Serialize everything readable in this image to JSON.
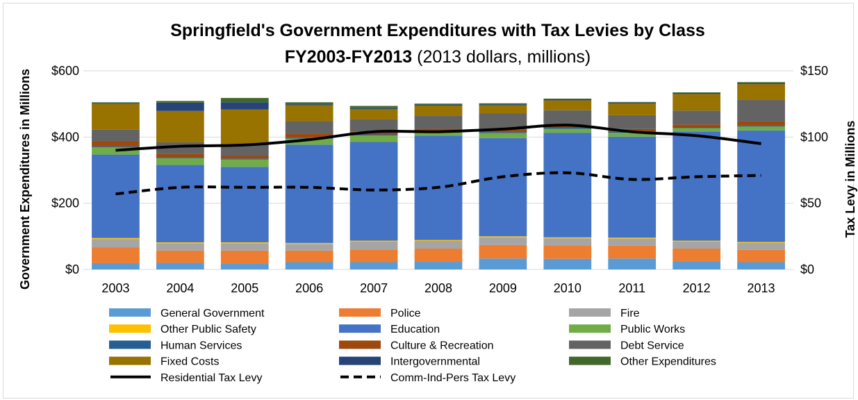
{
  "chart_data": {
    "type": "bar",
    "stacked": true,
    "title": "Springfield's Government Expenditures with Tax Levies by Class",
    "subtitle_bold": "FY2003-FY2013",
    "subtitle_normal": " (2013 dollars, millions)",
    "ylabel": "Government Expenditures in Millions",
    "y2label": "Tax Levy in Millions",
    "ylim": [
      0,
      600
    ],
    "y2lim": [
      0,
      150
    ],
    "y_ticks": [
      "$0",
      "$200",
      "$400",
      "$600"
    ],
    "y2_ticks": [
      "$0",
      "$50",
      "$100",
      "$150"
    ],
    "grid": true,
    "legend_position": "bottom",
    "categories": [
      "2003",
      "2004",
      "2005",
      "2006",
      "2007",
      "2008",
      "2009",
      "2010",
      "2011",
      "2012",
      "2013"
    ],
    "series": [
      {
        "name": "General Government",
        "color": "#5b9bd5",
        "values": [
          19,
          20,
          18,
          22,
          22,
          23,
          33,
          32,
          33,
          25,
          22
        ]
      },
      {
        "name": "Police",
        "color": "#ed7d31",
        "values": [
          48,
          37,
          39,
          35,
          38,
          40,
          41,
          41,
          39,
          38,
          37
        ]
      },
      {
        "name": "Fire",
        "color": "#a5a5a5",
        "values": [
          25,
          22,
          22,
          20,
          24,
          23,
          23,
          21,
          21,
          21,
          21
        ]
      },
      {
        "name": "Other Public Safety",
        "color": "#ffc000",
        "values": [
          3,
          3,
          3,
          3,
          3,
          3,
          3,
          3,
          3,
          3,
          3
        ]
      },
      {
        "name": "Education",
        "color": "#4472c4",
        "values": [
          252,
          234,
          228,
          297,
          298,
          315,
          297,
          316,
          305,
          330,
          337
        ]
      },
      {
        "name": "Public Works",
        "color": "#70ad47",
        "values": [
          22,
          20,
          22,
          18,
          20,
          10,
          15,
          12,
          12,
          10,
          12
        ]
      },
      {
        "name": "Human Services",
        "color": "#255e91",
        "values": [
          3,
          3,
          3,
          3,
          3,
          3,
          3,
          3,
          3,
          3,
          3
        ]
      },
      {
        "name": "Culture & Recreation",
        "color": "#9e480e",
        "values": [
          15,
          10,
          8,
          12,
          8,
          8,
          8,
          8,
          8,
          8,
          12
        ]
      },
      {
        "name": "Debt Service",
        "color": "#636363",
        "values": [
          35,
          35,
          35,
          38,
          38,
          40,
          48,
          45,
          42,
          42,
          65
        ]
      },
      {
        "name": "Fixed Costs",
        "color": "#997300",
        "values": [
          78,
          95,
          105,
          48,
          30,
          30,
          25,
          30,
          35,
          50,
          48
        ]
      },
      {
        "name": "Intergovernmental",
        "color": "#264478",
        "values": [
          3,
          25,
          22,
          3,
          3,
          3,
          3,
          3,
          3,
          3,
          3
        ]
      },
      {
        "name": "Other Expenditures",
        "color": "#43682b",
        "values": [
          2,
          5,
          13,
          6,
          7,
          3,
          3,
          2,
          2,
          2,
          3
        ]
      }
    ],
    "lines": [
      {
        "name": "Residential Tax Levy",
        "color": "#000000",
        "dash": "solid",
        "axis": "right",
        "values": [
          90,
          93,
          94,
          98,
          104,
          104,
          106,
          109,
          104,
          101,
          95
        ]
      },
      {
        "name": "Comm-Ind-Pers Tax Levy",
        "color": "#000000",
        "dash": "dashed",
        "axis": "right",
        "values": [
          57,
          62,
          62,
          62,
          60,
          62,
          70,
          73,
          68,
          70,
          71
        ]
      }
    ]
  }
}
